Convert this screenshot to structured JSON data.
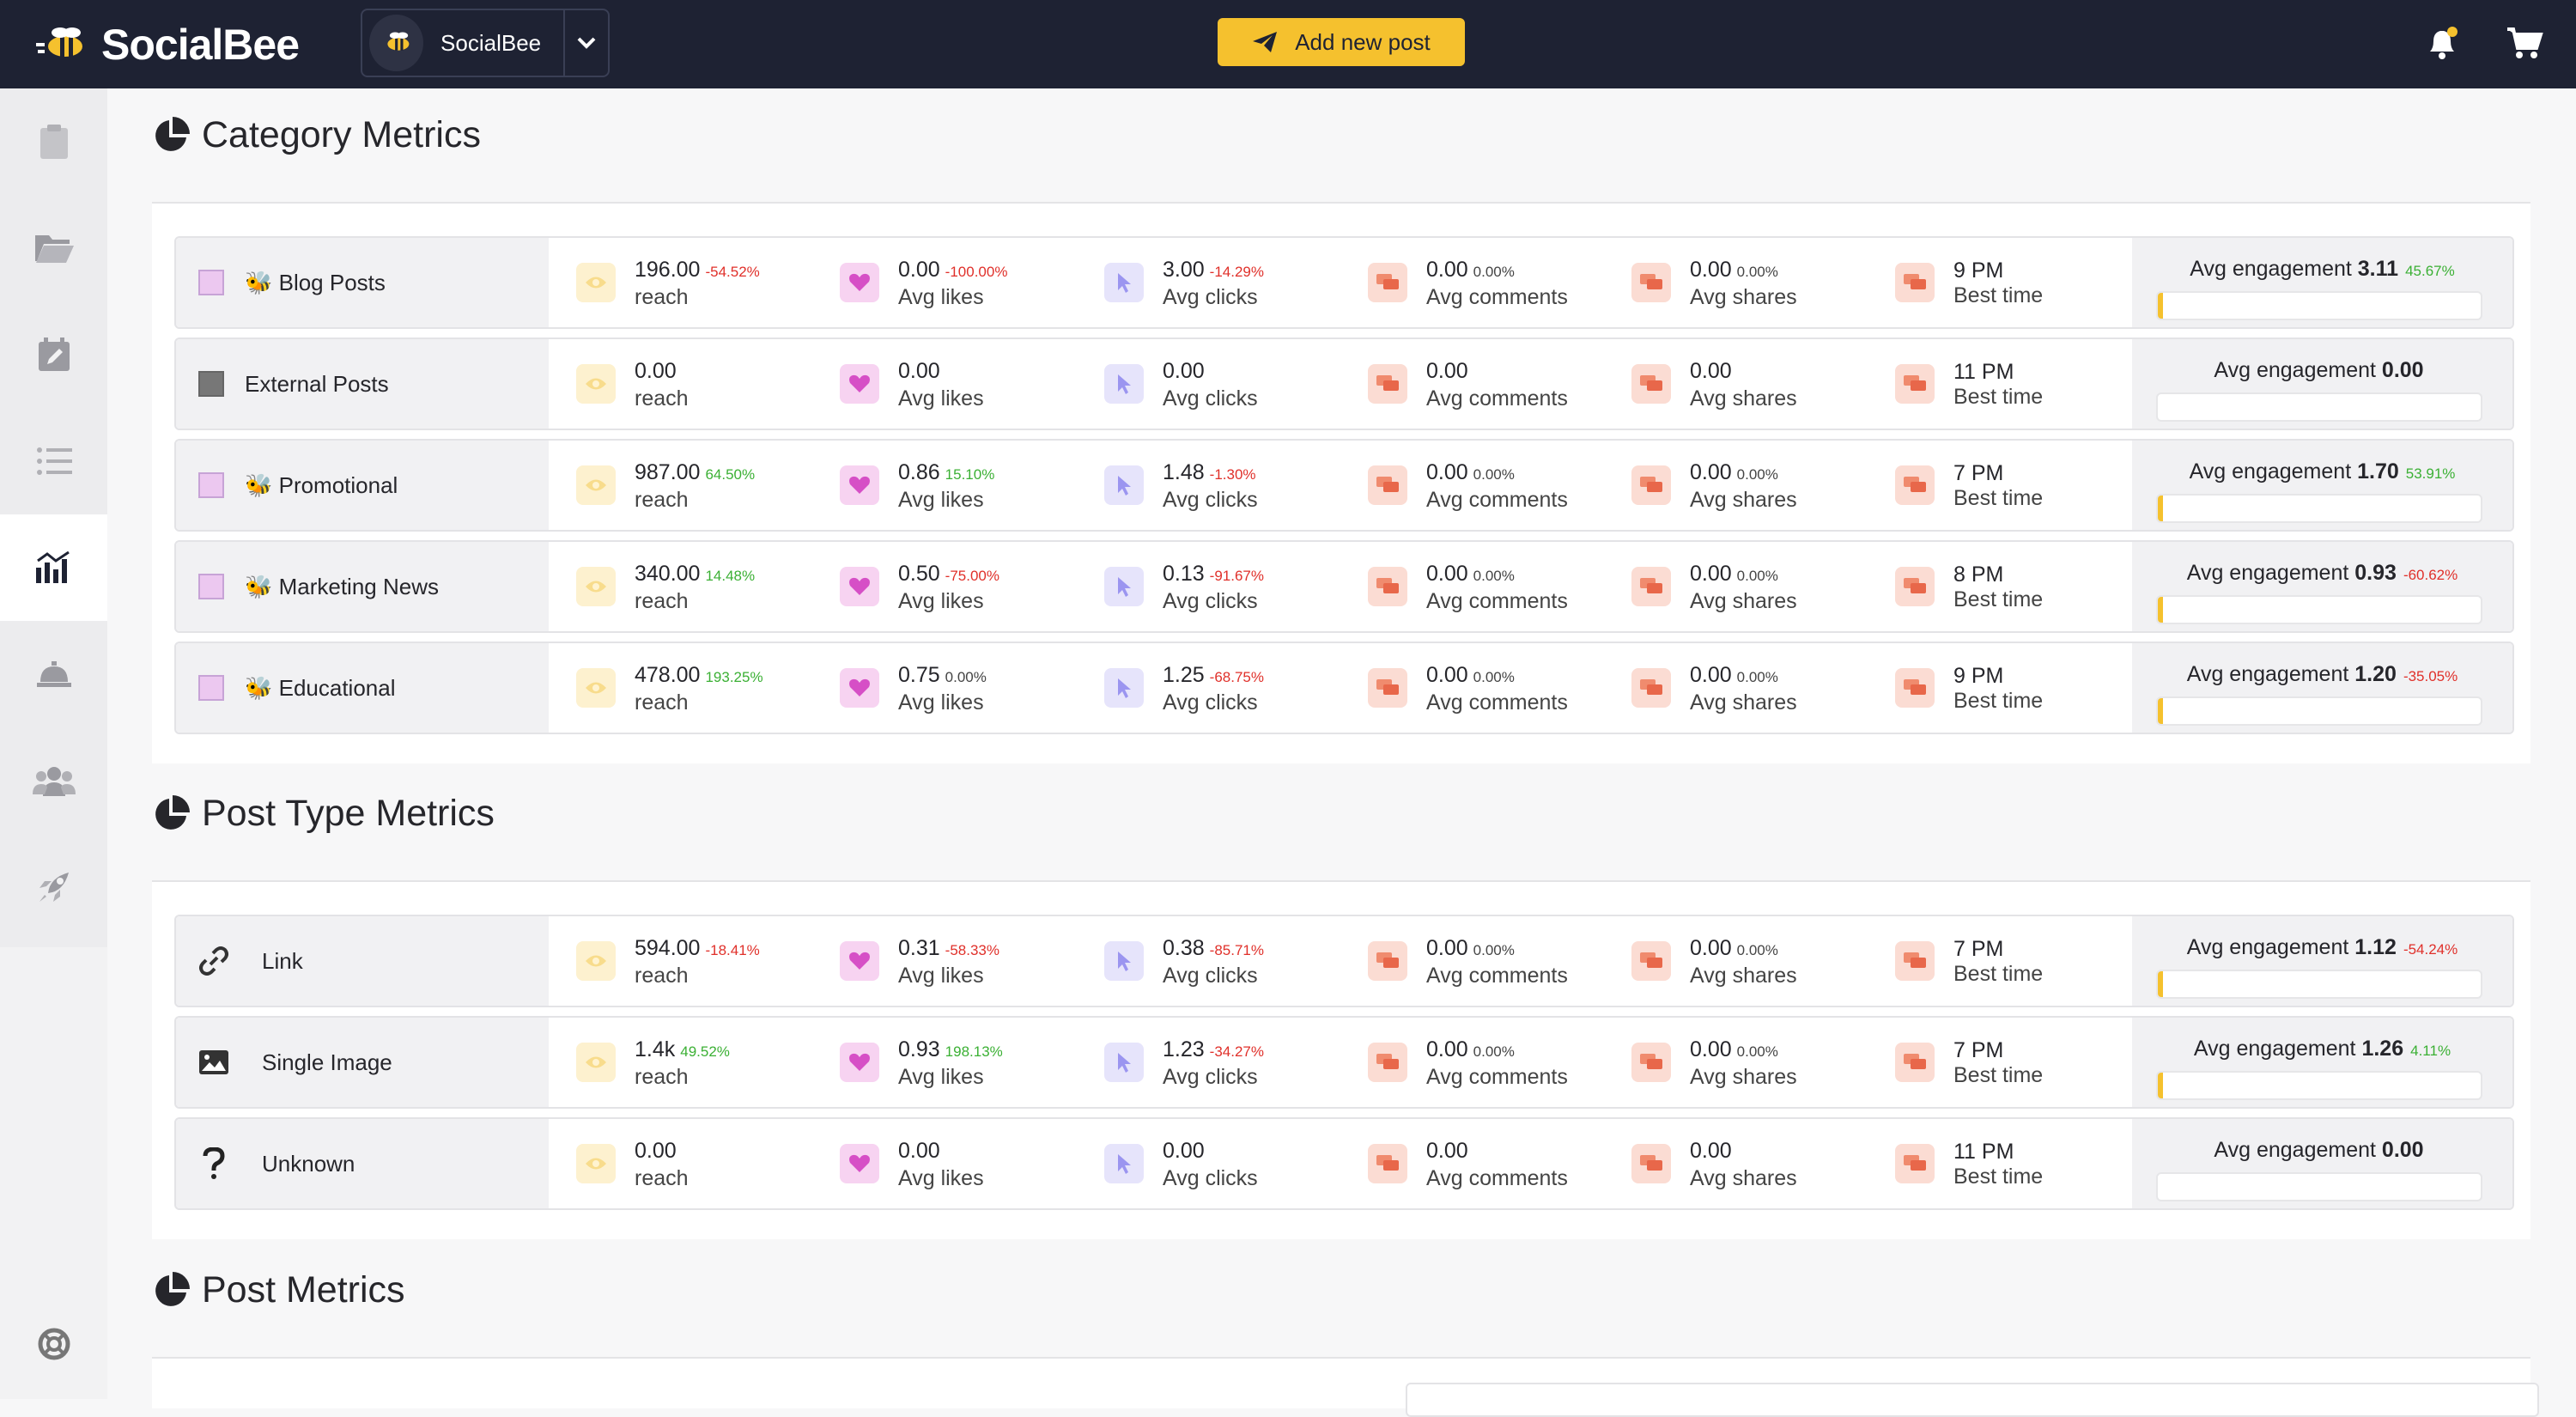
{
  "app": {
    "name": "SocialBee"
  },
  "workspace": {
    "name": "SocialBee"
  },
  "add_post_label": "Add new post",
  "sections": {
    "category": "Category Metrics",
    "post_type": "Post Type Metrics",
    "post": "Post Metrics"
  },
  "labels": {
    "reach": "reach",
    "likes": "Avg likes",
    "clicks": "Avg clicks",
    "comments": "Avg comments",
    "shares": "Avg shares",
    "best": "Best time",
    "engagement": "Avg engagement"
  },
  "colors": {
    "accent": "#f5c12e",
    "topbar": "#1e2233",
    "positive": "#3bb034",
    "negative": "#e0302a"
  },
  "categories": [
    {
      "name": "🐝 Blog Posts",
      "swatch": "#ecc8f0",
      "reach": "196.00",
      "reach_chg": "-54.52%",
      "likes": "0.00",
      "likes_chg": "-100.00%",
      "clicks": "3.00",
      "clicks_chg": "-14.29%",
      "comments": "0.00",
      "comments_chg": "0.00%",
      "shares": "0.00",
      "shares_chg": "0.00%",
      "best": "9 PM",
      "eng": "3.11",
      "eng_chg": "45.67%",
      "eng_level": 0.015
    },
    {
      "name": "External Posts",
      "swatch": "#777777",
      "reach": "0.00",
      "reach_chg": "",
      "likes": "0.00",
      "likes_chg": "",
      "clicks": "0.00",
      "clicks_chg": "",
      "comments": "0.00",
      "comments_chg": "",
      "shares": "0.00",
      "shares_chg": "",
      "best": "11 PM",
      "eng": "0.00",
      "eng_chg": "",
      "eng_level": 0
    },
    {
      "name": "🐝 Promotional",
      "swatch": "#ecc8f0",
      "reach": "987.00",
      "reach_chg": "64.50%",
      "likes": "0.86",
      "likes_chg": "15.10%",
      "clicks": "1.48",
      "clicks_chg": "-1.30%",
      "comments": "0.00",
      "comments_chg": "0.00%",
      "shares": "0.00",
      "shares_chg": "0.00%",
      "best": "7 PM",
      "eng": "1.70",
      "eng_chg": "53.91%",
      "eng_level": 0.01
    },
    {
      "name": "🐝 Marketing News",
      "swatch": "#ecc8f0",
      "reach": "340.00",
      "reach_chg": "14.48%",
      "likes": "0.50",
      "likes_chg": "-75.00%",
      "clicks": "0.13",
      "clicks_chg": "-91.67%",
      "comments": "0.00",
      "comments_chg": "0.00%",
      "shares": "0.00",
      "shares_chg": "0.00%",
      "best": "8 PM",
      "eng": "0.93",
      "eng_chg": "-60.62%",
      "eng_level": 0.006
    },
    {
      "name": "🐝 Educational",
      "swatch": "#ecc8f0",
      "reach": "478.00",
      "reach_chg": "193.25%",
      "likes": "0.75",
      "likes_chg": "0.00%",
      "clicks": "1.25",
      "clicks_chg": "-68.75%",
      "comments": "0.00",
      "comments_chg": "0.00%",
      "shares": "0.00",
      "shares_chg": "0.00%",
      "best": "9 PM",
      "eng": "1.20",
      "eng_chg": "-35.05%",
      "eng_level": 0.006
    }
  ],
  "post_types": [
    {
      "name": "Link",
      "icon": "link-icon",
      "reach": "594.00",
      "reach_chg": "-18.41%",
      "likes": "0.31",
      "likes_chg": "-58.33%",
      "clicks": "0.38",
      "clicks_chg": "-85.71%",
      "comments": "0.00",
      "comments_chg": "0.00%",
      "shares": "0.00",
      "shares_chg": "0.00%",
      "best": "7 PM",
      "eng": "1.12",
      "eng_chg": "-54.24%",
      "eng_level": 0.006
    },
    {
      "name": "Single Image",
      "icon": "image-icon",
      "reach": "1.4k",
      "reach_chg": "49.52%",
      "likes": "0.93",
      "likes_chg": "198.13%",
      "clicks": "1.23",
      "clicks_chg": "-34.27%",
      "comments": "0.00",
      "comments_chg": "0.00%",
      "shares": "0.00",
      "shares_chg": "0.00%",
      "best": "7 PM",
      "eng": "1.26",
      "eng_chg": "4.11%",
      "eng_level": 0.006
    },
    {
      "name": "Unknown",
      "icon": "question-icon",
      "reach": "0.00",
      "reach_chg": "",
      "likes": "0.00",
      "likes_chg": "",
      "clicks": "0.00",
      "clicks_chg": "",
      "comments": "0.00",
      "comments_chg": "",
      "shares": "0.00",
      "shares_chg": "",
      "best": "11 PM",
      "eng": "0.00",
      "eng_chg": "",
      "eng_level": 0
    }
  ]
}
